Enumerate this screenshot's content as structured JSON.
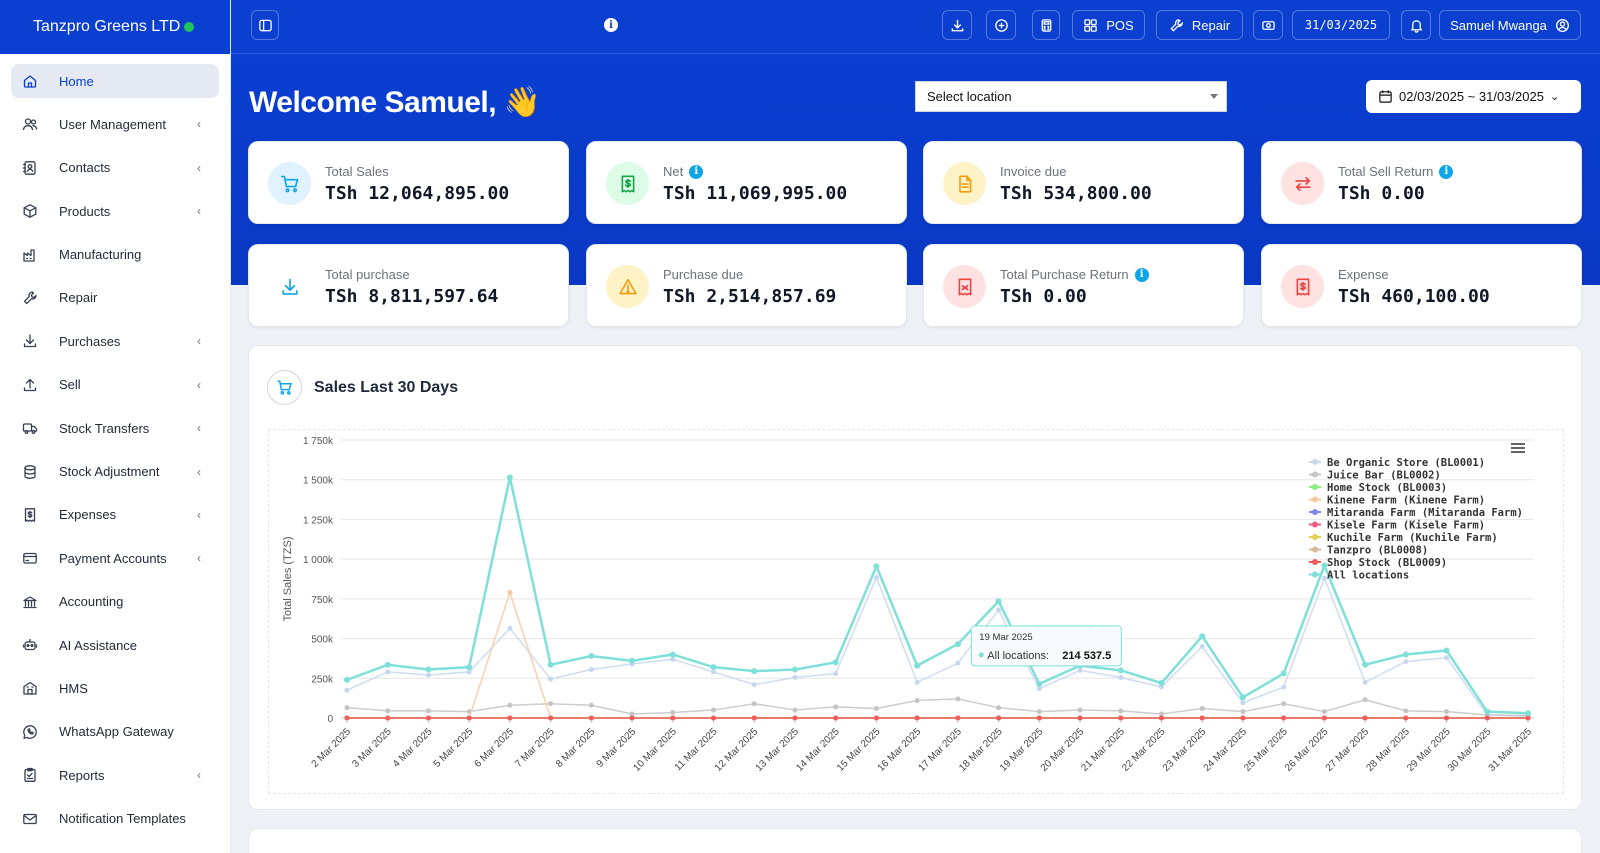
{
  "brand": {
    "name": "Tanzpro Greens LTD"
  },
  "sidebar": {
    "items": [
      {
        "label": "Home",
        "icon": "home-icon",
        "chevron": false,
        "active": true
      },
      {
        "label": "User Management",
        "icon": "users-icon",
        "chevron": true
      },
      {
        "label": "Contacts",
        "icon": "contacts-icon",
        "chevron": true
      },
      {
        "label": "Products",
        "icon": "box-icon",
        "chevron": true
      },
      {
        "label": "Manufacturing",
        "icon": "factory-icon",
        "chevron": false
      },
      {
        "label": "Repair",
        "icon": "wrench-icon",
        "chevron": false
      },
      {
        "label": "Purchases",
        "icon": "download-icon",
        "chevron": true
      },
      {
        "label": "Sell",
        "icon": "upload-icon",
        "chevron": true
      },
      {
        "label": "Stock Transfers",
        "icon": "truck-icon",
        "chevron": true
      },
      {
        "label": "Stock Adjustment",
        "icon": "database-icon",
        "chevron": true
      },
      {
        "label": "Expenses",
        "icon": "receipt-icon",
        "chevron": true
      },
      {
        "label": "Payment Accounts",
        "icon": "wallet-icon",
        "chevron": true
      },
      {
        "label": "Accounting",
        "icon": "bank-icon",
        "chevron": false
      },
      {
        "label": "AI Assistance",
        "icon": "robot-icon",
        "chevron": false
      },
      {
        "label": "HMS",
        "icon": "hotel-icon",
        "chevron": false
      },
      {
        "label": "WhatsApp Gateway",
        "icon": "whatsapp-icon",
        "chevron": false
      },
      {
        "label": "Reports",
        "icon": "clipboard-icon",
        "chevron": true
      },
      {
        "label": "Notification Templates",
        "icon": "envelope-icon",
        "chevron": false
      }
    ]
  },
  "topbar": {
    "pos_label": "POS",
    "repair_label": "Repair",
    "date": "31/03/2025",
    "user": "Samuel Mwanga"
  },
  "header": {
    "welcome": "Welcome Samuel, 👋",
    "location_placeholder": "Select location",
    "date_range": "02/03/2025 ~ 31/03/2025"
  },
  "stats": [
    {
      "label": "Total Sales",
      "value": "TSh 12,064,895.00",
      "icon": "cart-icon",
      "info": false,
      "color": "#0ea5e9",
      "bg": "#e0f2fe"
    },
    {
      "label": "Net",
      "value": "TSh 11,069,995.00",
      "icon": "money-receipt-icon",
      "info": true,
      "color": "#16a34a",
      "bg": "#dcfce7"
    },
    {
      "label": "Invoice due",
      "value": "TSh 534,800.00",
      "icon": "document-icon",
      "info": false,
      "color": "#f59e0b",
      "bg": "#fef3c7"
    },
    {
      "label": "Total Sell Return",
      "value": "TSh 0.00",
      "icon": "exchange-icon",
      "info": true,
      "color": "#ef4444",
      "bg": "#fee2e2"
    },
    {
      "label": "Total purchase",
      "value": "TSh 8,811,597.64",
      "icon": "download-icon",
      "info": false,
      "color": "#0ea5e9",
      "bg": "#ffffff"
    },
    {
      "label": "Purchase due",
      "value": "TSh 2,514,857.69",
      "icon": "warning-icon",
      "info": false,
      "color": "#f59e0b",
      "bg": "#fef3c7"
    },
    {
      "label": "Total Purchase Return",
      "value": "TSh 0.00",
      "icon": "return-receipt-icon",
      "info": true,
      "color": "#ef4444",
      "bg": "#fee2e2"
    },
    {
      "label": "Expense",
      "value": "TSh 460,100.00",
      "icon": "money-receipt-icon",
      "info": false,
      "color": "#ef4444",
      "bg": "#fee2e2"
    }
  ],
  "chart_section": {
    "title": "Sales Last 30 Days"
  },
  "chart_data": {
    "type": "line",
    "title": "",
    "xlabel": "",
    "ylabel": "Total Sales (TZS)",
    "ylim": [
      0,
      1750000
    ],
    "yticks": [
      0,
      250000,
      500000,
      750000,
      1000000,
      1250000,
      1500000,
      1750000
    ],
    "ytick_labels": [
      "0",
      "250k",
      "500k",
      "750k",
      "1 000k",
      "1 250k",
      "1 500k",
      "1 750k"
    ],
    "grid": true,
    "legend_position": "top-right",
    "categories": [
      "2 Mar 2025",
      "3 Mar 2025",
      "4 Mar 2025",
      "5 Mar 2025",
      "6 Mar 2025",
      "7 Mar 2025",
      "8 Mar 2025",
      "9 Mar 2025",
      "10 Mar 2025",
      "11 Mar 2025",
      "12 Mar 2025",
      "13 Mar 2025",
      "14 Mar 2025",
      "15 Mar 2025",
      "16 Mar 2025",
      "17 Mar 2025",
      "18 Mar 2025",
      "19 Mar 2025",
      "20 Mar 2025",
      "21 Mar 2025",
      "22 Mar 2025",
      "23 Mar 2025",
      "24 Mar 2025",
      "25 Mar 2025",
      "26 Mar 2025",
      "27 Mar 2025",
      "28 Mar 2025",
      "29 Mar 2025",
      "30 Mar 2025",
      "31 Mar 2025"
    ],
    "series": [
      {
        "name": "Be Organic Store (BL0001)",
        "color": "#c7d7ef",
        "values": [
          175000,
          290000,
          270000,
          290000,
          565000,
          245000,
          305000,
          340000,
          370000,
          290000,
          210000,
          255000,
          280000,
          885000,
          225000,
          345000,
          680000,
          185000,
          300000,
          255000,
          195000,
          450000,
          95000,
          195000,
          880000,
          225000,
          355000,
          380000,
          20000,
          10000
        ]
      },
      {
        "name": "Juice Bar (BL0002)",
        "color": "#c4c4c4",
        "values": [
          65000,
          45000,
          45000,
          40000,
          80000,
          90000,
          80000,
          25000,
          35000,
          50000,
          90000,
          50000,
          70000,
          60000,
          110000,
          120000,
          65000,
          40000,
          50000,
          45000,
          25000,
          60000,
          40000,
          90000,
          40000,
          115000,
          45000,
          40000,
          20000,
          15000
        ]
      },
      {
        "name": "Home Stock (BL0003)",
        "color": "#90ed7d",
        "values": [
          0,
          0,
          0,
          0,
          0,
          0,
          0,
          0,
          0,
          0,
          0,
          0,
          0,
          0,
          0,
          0,
          0,
          0,
          0,
          0,
          0,
          0,
          0,
          0,
          0,
          0,
          0,
          0,
          0,
          0
        ]
      },
      {
        "name": "Kinene Farm (Kinene Farm)",
        "color": "#f7c8a0",
        "values": [
          0,
          0,
          0,
          0,
          790000,
          0,
          0,
          0,
          0,
          0,
          0,
          0,
          0,
          0,
          0,
          0,
          0,
          0,
          0,
          0,
          0,
          0,
          0,
          0,
          0,
          0,
          0,
          0,
          0,
          0
        ]
      },
      {
        "name": "Mitaranda Farm (Mitaranda Farm)",
        "color": "#8085e9",
        "values": [
          0,
          0,
          0,
          0,
          0,
          0,
          0,
          0,
          0,
          0,
          0,
          0,
          0,
          0,
          0,
          0,
          0,
          0,
          0,
          0,
          0,
          0,
          0,
          0,
          0,
          0,
          0,
          0,
          0,
          0
        ]
      },
      {
        "name": "Kisele Farm (Kisele Farm)",
        "color": "#f15c80",
        "values": [
          0,
          0,
          0,
          0,
          0,
          0,
          0,
          0,
          0,
          0,
          0,
          0,
          0,
          0,
          0,
          0,
          0,
          0,
          0,
          0,
          0,
          0,
          0,
          0,
          0,
          0,
          0,
          0,
          0,
          0
        ]
      },
      {
        "name": "Kuchile Farm (Kuchile Farm)",
        "color": "#e4d354",
        "values": [
          0,
          0,
          0,
          0,
          0,
          0,
          0,
          0,
          0,
          0,
          0,
          0,
          0,
          0,
          0,
          0,
          0,
          0,
          0,
          0,
          0,
          0,
          0,
          0,
          0,
          0,
          0,
          0,
          0,
          0
        ]
      },
      {
        "name": "Tanzpro (BL0008)",
        "color": "#d9b89a",
        "values": [
          0,
          0,
          0,
          0,
          0,
          0,
          0,
          0,
          0,
          0,
          0,
          0,
          0,
          0,
          0,
          0,
          0,
          0,
          0,
          0,
          0,
          0,
          0,
          0,
          0,
          0,
          0,
          0,
          0,
          0
        ]
      },
      {
        "name": "Shop Stock (BL0009)",
        "color": "#f45b5b",
        "values": [
          0,
          0,
          0,
          0,
          0,
          0,
          0,
          0,
          0,
          0,
          0,
          0,
          0,
          0,
          0,
          0,
          0,
          0,
          0,
          0,
          0,
          0,
          0,
          0,
          0,
          0,
          0,
          0,
          0,
          0
        ]
      },
      {
        "name": "All locations",
        "color": "#7ee0d8",
        "values": [
          240000,
          335000,
          305000,
          320000,
          1515000,
          335000,
          390000,
          360000,
          400000,
          320000,
          295000,
          305000,
          350000,
          955000,
          330000,
          465000,
          735000,
          214537.5,
          330000,
          300000,
          220000,
          515000,
          130000,
          280000,
          960000,
          335000,
          400000,
          425000,
          40000,
          30000
        ]
      }
    ],
    "tooltip": {
      "date": "19 Mar 2025",
      "label": "All locations:",
      "value": "214 537.5"
    }
  }
}
